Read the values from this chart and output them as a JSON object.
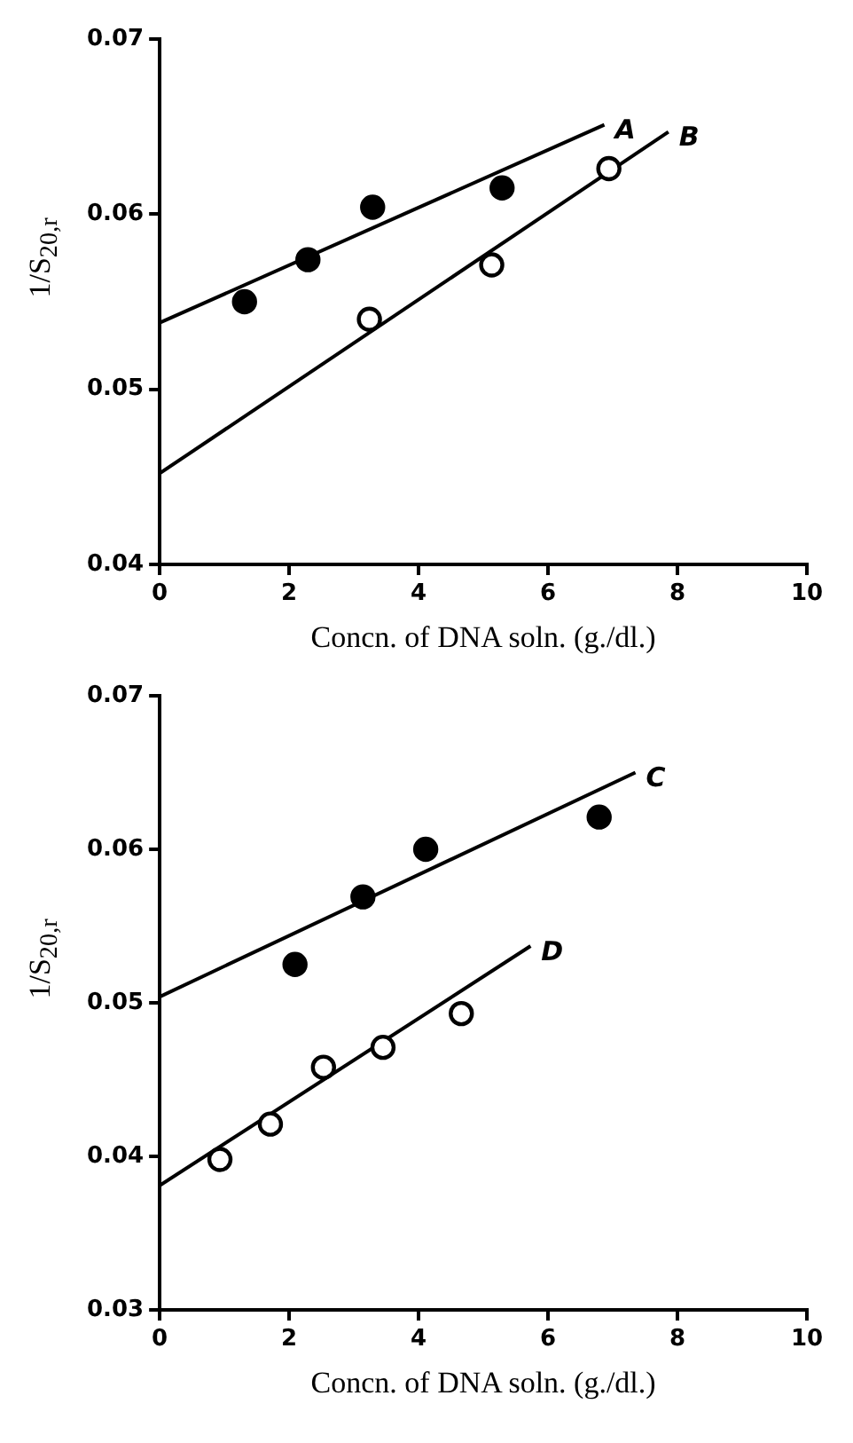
{
  "chart_data": [
    {
      "type": "scatter",
      "xlabel": "Concn. of DNA soln. (g./dl.)",
      "ylabel": "1/S$_{20,r}$",
      "xlim": [
        0,
        10
      ],
      "xticks": [
        0,
        2,
        4,
        6,
        8,
        10
      ],
      "ylim": [
        0.04,
        0.07
      ],
      "yticks": [
        0.04,
        0.05,
        0.06,
        0.07
      ],
      "grid": false,
      "legend": false,
      "marker": "circle",
      "series": [
        {
          "color": "#000000",
          "x": [
            1.31,
            2.29,
            3.29,
            5.29
          ],
          "values": [
            0.055,
            0.0574,
            0.0604,
            0.0615
          ]
        },
        {
          "color": "#ffffff",
          "x": [
            3.24,
            5.13,
            6.94
          ],
          "values": [
            0.054,
            0.0571,
            0.0626
          ]
        },
        {
          "type": "line",
          "name": "A",
          "marker": "none",
          "color": "#000000",
          "x": [
            0,
            6.87
          ],
          "values": [
            0.0538,
            0.0651
          ]
        },
        {
          "type": "line",
          "name": "B",
          "marker": "none",
          "color": "#000000",
          "x": [
            0,
            7.86
          ],
          "values": [
            0.0452,
            0.0647
          ]
        }
      ]
    },
    {
      "type": "scatter",
      "xlabel": "Concn. of DNA soln. (g./dl.)",
      "ylabel": "1/S$_{20,r}$",
      "xlim": [
        0,
        10
      ],
      "xticks": [
        0,
        2,
        4,
        6,
        8,
        10
      ],
      "ylim": [
        0.03,
        0.07
      ],
      "yticks": [
        0.03,
        0.04,
        0.05,
        0.06,
        0.07
      ],
      "grid": false,
      "legend": false,
      "marker": "circle",
      "series": [
        {
          "color": "#000000",
          "x": [
            2.09,
            3.14,
            4.11,
            6.79
          ],
          "values": [
            0.0525,
            0.0569,
            0.06,
            0.0621
          ]
        },
        {
          "color": "#ffffff",
          "x": [
            0.93,
            1.71,
            2.53,
            3.45,
            4.66
          ],
          "values": [
            0.0398,
            0.0421,
            0.0458,
            0.0471,
            0.0493
          ]
        },
        {
          "type": "line",
          "name": "C",
          "marker": "none",
          "color": "#000000",
          "x": [
            0,
            7.35
          ],
          "values": [
            0.0504,
            0.065
          ]
        },
        {
          "type": "line",
          "name": "D",
          "marker": "none",
          "color": "#000000",
          "x": [
            0,
            5.73
          ],
          "values": [
            0.0381,
            0.0537
          ]
        }
      ]
    }
  ]
}
